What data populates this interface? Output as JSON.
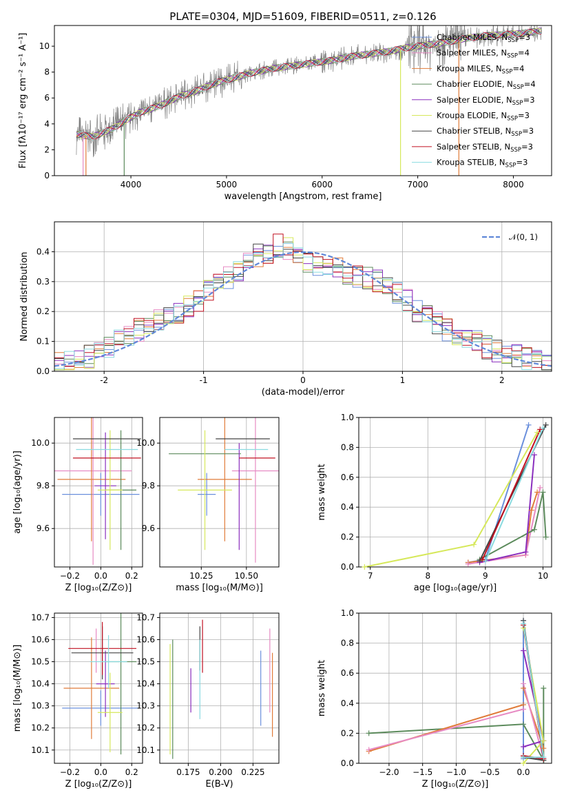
{
  "title": "PLATE=0304, MJD=51609, FIBERID=0511, z=0.126",
  "colors": {
    "Chabrier MILES": "#6a8fdc",
    "Salpeter MILES": "#e78ac3",
    "Kroupa MILES": "#e07b39",
    "Chabrier ELODIE": "#5b8a5b",
    "Salpeter ELODIE": "#8a2ebe",
    "Kroupa ELODIE": "#d6e85a",
    "Chabrier STELIB": "#444444",
    "Salpeter STELIB": "#c01020",
    "Kroupa STELIB": "#8adbe0",
    "data": "#808080",
    "normal": "#5f87d8"
  },
  "legend": [
    {
      "model": "Chabrier MILES",
      "name": "Chabrier MILES, N",
      "sub": "SSP",
      "tail": "=3"
    },
    {
      "model": "Salpeter MILES",
      "name": "Salpeter MILES, N",
      "sub": "SSP",
      "tail": "=4"
    },
    {
      "model": "Kroupa MILES",
      "name": "Kroupa MILES, N",
      "sub": "SSP",
      "tail": "=4"
    },
    {
      "model": "Chabrier ELODIE",
      "name": "Chabrier ELODIE, N",
      "sub": "SSP",
      "tail": "=4"
    },
    {
      "model": "Salpeter ELODIE",
      "name": "Salpeter ELODIE, N",
      "sub": "SSP",
      "tail": "=3"
    },
    {
      "model": "Kroupa ELODIE",
      "name": "Kroupa ELODIE, N",
      "sub": "SSP",
      "tail": "=3"
    },
    {
      "model": "Chabrier STELIB",
      "name": "Chabrier STELIB, N",
      "sub": "SSP",
      "tail": "=3"
    },
    {
      "model": "Salpeter STELIB",
      "name": "Salpeter STELIB, N",
      "sub": "SSP",
      "tail": "=3"
    },
    {
      "model": "Kroupa STELIB",
      "name": "Kroupa STELIB, N",
      "sub": "SSP",
      "tail": "=3"
    }
  ],
  "chart_data": [
    {
      "id": "spectrum",
      "type": "line",
      "xlabel": "wavelength [Angstrom, rest frame]",
      "ylabel": "Flux [fλ10⁻¹⁷ erg cm⁻² s⁻¹ A⁻¹]",
      "xlim": [
        3200,
        8400
      ],
      "ylim": [
        0,
        11.6
      ],
      "xticks": [
        4000,
        5000,
        6000,
        7000,
        8000
      ],
      "yticks": [
        0,
        2,
        4,
        6,
        8,
        10
      ],
      "grid": false,
      "legend_placement": "top-right",
      "data_series": {
        "x": [
          3430,
          3600,
          3800,
          3950,
          4100,
          4300,
          4500,
          4700,
          4900,
          5100,
          5300,
          5500,
          5700,
          5900,
          6100,
          6300,
          6500,
          6700,
          6900,
          7100,
          7300,
          7500,
          7700,
          7900,
          8100,
          8300
        ],
        "y": [
          3.2,
          3.0,
          3.6,
          4.3,
          4.9,
          5.4,
          6.1,
          6.6,
          7.2,
          7.6,
          8.0,
          8.3,
          8.5,
          8.7,
          8.9,
          9.2,
          9.4,
          9.6,
          9.9,
          10.1,
          10.3,
          10.6,
          10.8,
          10.9,
          11.0,
          11.2
        ]
      },
      "drops": [
        {
          "model": "Salpeter MILES",
          "x": 3500
        },
        {
          "model": "Kroupa MILES",
          "x": 3530
        },
        {
          "model": "Chabrier ELODIE",
          "x": 3930
        },
        {
          "model": "Kroupa ELODIE",
          "x": 6820
        },
        {
          "model": "Kroupa MILES",
          "x": 7430
        }
      ]
    },
    {
      "id": "residuals",
      "type": "area",
      "xlabel": "(data-model)/error",
      "ylabel": "Normed distribution",
      "xlim": [
        -2.5,
        2.5
      ],
      "ylim": [
        0,
        0.5
      ],
      "xticks": [
        -2,
        -1,
        0,
        1,
        2
      ],
      "yticks": [
        0.0,
        0.1,
        0.2,
        0.3,
        0.4
      ],
      "grid": true,
      "legend_placement": "top-right",
      "legend": "𝒩(0, 1)",
      "bin_edges": [
        -2.5,
        -2.4,
        -2.3,
        -2.2,
        -2.1,
        -2.0,
        -1.9,
        -1.8,
        -1.7,
        -1.6,
        -1.5,
        -1.4,
        -1.3,
        -1.2,
        -1.1,
        -1.0,
        -0.9,
        -0.8,
        -0.7,
        -0.6,
        -0.5,
        -0.4,
        -0.3,
        -0.2,
        -0.1,
        0.0,
        0.1,
        0.2,
        0.3,
        0.4,
        0.5,
        0.6,
        0.7,
        0.8,
        0.9,
        1.0,
        1.1,
        1.2,
        1.3,
        1.4,
        1.5,
        1.6,
        1.7,
        1.8,
        1.9,
        2.0,
        2.1,
        2.2,
        2.3,
        2.4,
        2.5
      ],
      "base_density": [
        0.03,
        0.035,
        0.04,
        0.05,
        0.06,
        0.08,
        0.1,
        0.12,
        0.14,
        0.15,
        0.17,
        0.19,
        0.2,
        0.22,
        0.24,
        0.27,
        0.29,
        0.31,
        0.33,
        0.37,
        0.39,
        0.4,
        0.42,
        0.41,
        0.38,
        0.37,
        0.36,
        0.35,
        0.34,
        0.33,
        0.32,
        0.31,
        0.3,
        0.28,
        0.26,
        0.24,
        0.2,
        0.18,
        0.16,
        0.14,
        0.12,
        0.11,
        0.1,
        0.08,
        0.07,
        0.06,
        0.05,
        0.04,
        0.03,
        0.03
      ]
    },
    {
      "id": "age-vs-Z",
      "type": "scatter",
      "xlabel": "Z [log₁₀(Z/Z⊙)]",
      "ylabel": "age  [log₁₀(age/yr)]",
      "xlim": [
        -0.3,
        0.27
      ],
      "ylim": [
        9.42,
        10.12
      ],
      "xticks": [
        -0.2,
        0.0,
        0.2
      ],
      "xtick_labels": [
        "−0.2",
        "0.0",
        "0.2"
      ],
      "yticks": [
        9.6,
        9.8,
        10.0
      ],
      "grid": true,
      "points": [
        {
          "model": "Chabrier MILES",
          "x": 0.0,
          "y": 9.76,
          "xerr": 0.25,
          "yerr": 0.1
        },
        {
          "model": "Salpeter MILES",
          "x": -0.05,
          "y": 9.87,
          "xerr": 0.25,
          "yerr": 0.44
        },
        {
          "model": "Kroupa MILES",
          "x": -0.06,
          "y": 9.83,
          "xerr": 0.22,
          "yerr": 0.29
        },
        {
          "model": "Chabrier ELODIE",
          "x": 0.13,
          "y": 9.78,
          "xerr": 0.1,
          "yerr": 0.28
        },
        {
          "model": "Salpeter ELODIE",
          "x": 0.03,
          "y": 9.8,
          "xerr": 0.07,
          "yerr": 0.25
        },
        {
          "model": "Kroupa ELODIE",
          "x": 0.06,
          "y": 9.78,
          "xerr": 0.08,
          "yerr": 0.28
        },
        {
          "model": "Chabrier STELIB",
          "x": 0.04,
          "y": 10.02,
          "xerr": 0.22,
          "yerr": 0.0
        },
        {
          "model": "Salpeter STELIB",
          "x": 0.04,
          "y": 9.93,
          "xerr": 0.22,
          "yerr": 0.0
        },
        {
          "model": "Kroupa STELIB",
          "x": 0.04,
          "y": 9.97,
          "xerr": 0.2,
          "yerr": 0.0
        }
      ]
    },
    {
      "id": "age-vs-mass",
      "type": "scatter",
      "xlabel": "mass [log₁₀(M/M⊙)]",
      "ylabel": "",
      "xlim": [
        10.02,
        10.68
      ],
      "ylim": [
        9.42,
        10.12
      ],
      "xticks": [
        10.25,
        10.5
      ],
      "xtick_labels": [
        "10.25",
        "10.50"
      ],
      "yticks": [
        9.6,
        9.8,
        10.0
      ],
      "grid": true,
      "points": [
        {
          "model": "Chabrier MILES",
          "x": 10.28,
          "y": 9.76,
          "xerr": 0.05,
          "yerr": 0.1
        },
        {
          "model": "Salpeter MILES",
          "x": 10.55,
          "y": 9.87,
          "xerr": 0.13,
          "yerr": 0.43
        },
        {
          "model": "Kroupa MILES",
          "x": 10.38,
          "y": 9.83,
          "xerr": 0.15,
          "yerr": 0.29
        },
        {
          "model": "Chabrier ELODIE",
          "x": 10.27,
          "y": 9.95,
          "xerr": 0.2,
          "yerr": 0.0
        },
        {
          "model": "Salpeter ELODIE",
          "x": 10.46,
          "y": 9.75,
          "xerr": 0.0,
          "yerr": 0.25
        },
        {
          "model": "Kroupa ELODIE",
          "x": 10.27,
          "y": 9.78,
          "xerr": 0.15,
          "yerr": 0.28
        },
        {
          "model": "Chabrier STELIB",
          "x": 10.48,
          "y": 10.02,
          "xerr": 0.15,
          "yerr": 0.0
        },
        {
          "model": "Salpeter STELIB",
          "x": 10.56,
          "y": 9.93,
          "xerr": 0.1,
          "yerr": 0.0
        },
        {
          "model": "Kroupa STELIB",
          "x": 10.5,
          "y": 9.97,
          "xerr": 0.12,
          "yerr": 0.0
        }
      ]
    },
    {
      "id": "weight-vs-age",
      "type": "line",
      "xlabel": "age  [log₁₀(age/yr)]",
      "ylabel": "mass weight",
      "xlim": [
        6.8,
        10.15
      ],
      "ylim": [
        0,
        1.0
      ],
      "xticks": [
        7,
        8,
        9,
        10
      ],
      "yticks": [
        0.0,
        0.2,
        0.4,
        0.6,
        0.8,
        1.0
      ],
      "grid": true,
      "series": [
        {
          "model": "Chabrier MILES",
          "points": [
            [
              8.7,
              0.03
            ],
            [
              9.0,
              0.05
            ],
            [
              9.75,
              0.95
            ]
          ]
        },
        {
          "model": "Kroupa MILES",
          "points": [
            [
              8.7,
              0.03
            ],
            [
              9.7,
              0.08
            ],
            [
              9.8,
              0.38
            ],
            [
              9.9,
              0.5
            ]
          ]
        },
        {
          "model": "Salpeter MILES",
          "points": [
            [
              8.7,
              0.02
            ],
            [
              9.7,
              0.08
            ],
            [
              9.95,
              0.53
            ]
          ]
        },
        {
          "model": "Chabrier ELODIE",
          "points": [
            [
              8.9,
              0.05
            ],
            [
              9.85,
              0.25
            ],
            [
              10.0,
              0.5
            ],
            [
              10.05,
              0.2
            ]
          ]
        },
        {
          "model": "Salpeter ELODIE",
          "points": [
            [
              8.9,
              0.03
            ],
            [
              9.7,
              0.1
            ],
            [
              9.85,
              0.75
            ]
          ]
        },
        {
          "model": "Kroupa ELODIE",
          "points": [
            [
              6.9,
              0.0
            ],
            [
              8.8,
              0.15
            ],
            [
              9.9,
              0.9
            ]
          ]
        },
        {
          "model": "Chabrier STELIB",
          "points": [
            [
              8.9,
              0.04
            ],
            [
              10.05,
              0.95
            ]
          ]
        },
        {
          "model": "Salpeter STELIB",
          "points": [
            [
              8.95,
              0.05
            ],
            [
              9.95,
              0.92
            ]
          ]
        },
        {
          "model": "Kroupa STELIB",
          "points": [
            [
              9.0,
              0.04
            ],
            [
              10.0,
              0.93
            ]
          ]
        }
      ]
    },
    {
      "id": "mass-vs-Z",
      "type": "scatter",
      "xlabel": "Z [log₁₀(Z/Z⊙)]",
      "ylabel": "mass [log₁₀(M/M⊙)]",
      "xlim": [
        -0.3,
        0.27
      ],
      "ylim": [
        10.04,
        10.72
      ],
      "xticks": [
        -0.2,
        0.0,
        0.2
      ],
      "xtick_labels": [
        "−0.2",
        "0.0",
        "0.2"
      ],
      "yticks": [
        10.1,
        10.2,
        10.3,
        10.4,
        10.5,
        10.6,
        10.7
      ],
      "grid": true,
      "points": [
        {
          "model": "Chabrier MILES",
          "x": 0.0,
          "y": 10.29,
          "xerr": 0.25,
          "yerr": 0.08
        },
        {
          "model": "Salpeter MILES",
          "x": -0.03,
          "y": 10.55,
          "xerr": 0.0,
          "yerr": 0.1
        },
        {
          "model": "Kroupa MILES",
          "x": -0.06,
          "y": 10.38,
          "xerr": 0.18,
          "yerr": 0.23
        },
        {
          "model": "Chabrier ELODIE",
          "x": 0.13,
          "y": 10.5,
          "xerr": 0.1,
          "yerr": 0.42
        },
        {
          "model": "Salpeter ELODIE",
          "x": 0.03,
          "y": 10.4,
          "xerr": 0.06,
          "yerr": 0.15
        },
        {
          "model": "Kroupa ELODIE",
          "x": 0.06,
          "y": 10.27,
          "xerr": 0.08,
          "yerr": 0.18
        },
        {
          "model": "Chabrier STELIB",
          "x": 0.01,
          "y": 10.54,
          "xerr": 0.2,
          "yerr": 0.12
        },
        {
          "model": "Salpeter STELIB",
          "x": 0.01,
          "y": 10.56,
          "xerr": 0.22,
          "yerr": 0.12
        },
        {
          "model": "Kroupa STELIB",
          "x": 0.05,
          "y": 10.5,
          "xerr": 0.12,
          "yerr": 0.12
        }
      ]
    },
    {
      "id": "mass-vs-EBV",
      "type": "scatter",
      "xlabel": "E(B-V)",
      "ylabel": "",
      "xlim": [
        0.153,
        0.245
      ],
      "ylim": [
        10.04,
        10.72
      ],
      "xticks": [
        0.175,
        0.2,
        0.225
      ],
      "xtick_labels": [
        "0.175",
        "0.200",
        "0.225"
      ],
      "yticks": [
        10.1,
        10.2,
        10.3,
        10.4,
        10.5,
        10.6,
        10.7
      ],
      "grid": true,
      "points": [
        {
          "model": "Chabrier MILES",
          "x": 0.231,
          "y": 10.38,
          "xerr": 0.0,
          "yerr": 0.17
        },
        {
          "model": "Salpeter MILES",
          "x": 0.238,
          "y": 10.46,
          "xerr": 0.0,
          "yerr": 0.19
        },
        {
          "model": "Kroupa MILES",
          "x": 0.24,
          "y": 10.35,
          "xerr": 0.0,
          "yerr": 0.19
        },
        {
          "model": "Chabrier ELODIE",
          "x": 0.163,
          "y": 10.33,
          "xerr": 0.0,
          "yerr": 0.27
        },
        {
          "model": "Salpeter ELODIE",
          "x": 0.177,
          "y": 10.37,
          "xerr": 0.0,
          "yerr": 0.1
        },
        {
          "model": "Kroupa ELODIE",
          "x": 0.161,
          "y": 10.33,
          "xerr": 0.0,
          "yerr": 0.25
        },
        {
          "model": "Chabrier STELIB",
          "x": 0.184,
          "y": 10.56,
          "xerr": 0.0,
          "yerr": 0.1
        },
        {
          "model": "Salpeter STELIB",
          "x": 0.186,
          "y": 10.57,
          "xerr": 0.0,
          "yerr": 0.12
        },
        {
          "model": "Kroupa STELIB",
          "x": 0.184,
          "y": 10.42,
          "xerr": 0.0,
          "yerr": 0.18
        }
      ]
    },
    {
      "id": "weight-vs-Z",
      "type": "line",
      "xlabel": "Z [log₁₀(Z/Z⊙)]",
      "ylabel": "mass weight",
      "xlim": [
        -2.45,
        0.42
      ],
      "ylim": [
        0,
        1.0
      ],
      "xticks": [
        -2.0,
        -1.5,
        -1.0,
        -0.5,
        0.0
      ],
      "xtick_labels": [
        "−2.0",
        "−1.5",
        "−1.0",
        "−0.5",
        "0.0"
      ],
      "yticks": [
        0.0,
        0.2,
        0.4,
        0.6,
        0.8,
        1.0
      ],
      "grid": true,
      "series": [
        {
          "model": "Chabrier ELODIE",
          "points": [
            [
              -2.3,
              0.2
            ],
            [
              0.0,
              0.26
            ],
            [
              0.3,
              0.02
            ],
            [
              0.3,
              0.5
            ]
          ]
        },
        {
          "model": "Kroupa MILES",
          "points": [
            [
              -2.3,
              0.08
            ],
            [
              0.0,
              0.39
            ],
            [
              0.0,
              0.5
            ],
            [
              0.3,
              0.1
            ]
          ]
        },
        {
          "model": "Salpeter MILES",
          "points": [
            [
              -2.3,
              0.09
            ],
            [
              0.0,
              0.36
            ],
            [
              0.0,
              0.53
            ],
            [
              0.3,
              0.03
            ]
          ]
        },
        {
          "model": "Chabrier MILES",
          "points": [
            [
              0.0,
              0.03
            ],
            [
              0.0,
              0.95
            ]
          ]
        },
        {
          "model": "Salpeter ELODIE",
          "points": [
            [
              0.0,
              0.11
            ],
            [
              0.3,
              0.15
            ],
            [
              0.0,
              0.75
            ]
          ]
        },
        {
          "model": "Kroupa ELODIE",
          "points": [
            [
              0.0,
              0.0
            ],
            [
              0.3,
              0.15
            ],
            [
              0.0,
              0.9
            ]
          ]
        },
        {
          "model": "Chabrier STELIB",
          "points": [
            [
              0.0,
              0.04
            ],
            [
              0.3,
              0.02
            ],
            [
              0.0,
              0.95
            ]
          ]
        },
        {
          "model": "Salpeter STELIB",
          "points": [
            [
              0.0,
              0.05
            ],
            [
              0.3,
              0.03
            ],
            [
              0.0,
              0.92
            ]
          ]
        },
        {
          "model": "Kroupa STELIB",
          "points": [
            [
              0.0,
              0.04
            ],
            [
              0.3,
              0.04
            ],
            [
              0.0,
              0.93
            ]
          ]
        }
      ]
    }
  ]
}
